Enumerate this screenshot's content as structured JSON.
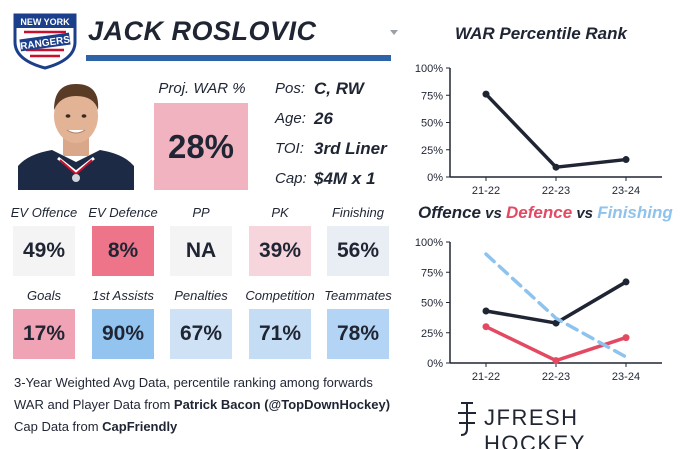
{
  "team": {
    "logo_top_text": "NEW YORK",
    "logo_main_text": "RANGERS"
  },
  "player": {
    "name": "JACK ROSLOVIC"
  },
  "war": {
    "label": "Proj. WAR %",
    "value": "28%",
    "color": "#f0b3bf"
  },
  "info": [
    {
      "key": "Pos:",
      "value": "C, RW"
    },
    {
      "key": "Age:",
      "value": "26"
    },
    {
      "key": "TOI:",
      "value": "3rd Liner"
    },
    {
      "key": "Cap:",
      "value": "$4M x 1"
    }
  ],
  "stats_row1": [
    {
      "label": "EV Offence",
      "value": "49%",
      "color": "#f4f4f5"
    },
    {
      "label": "EV Defence",
      "value": "8%",
      "color": "#ee7589"
    },
    {
      "label": "PP",
      "value": "NA",
      "color": "#f4f4f5"
    },
    {
      "label": "PK",
      "value": "39%",
      "color": "#f7d5dc"
    },
    {
      "label": "Finishing",
      "value": "56%",
      "color": "#e9eef4"
    }
  ],
  "stats_row2": [
    {
      "label": "Goals",
      "value": "17%",
      "color": "#f0a3b4"
    },
    {
      "label": "1st Assists",
      "value": "90%",
      "color": "#92c4ef"
    },
    {
      "label": "Penalties",
      "value": "67%",
      "color": "#cfe1f5"
    },
    {
      "label": "Competition",
      "value": "71%",
      "color": "#c4dcf4"
    },
    {
      "label": "Teammates",
      "value": "78%",
      "color": "#b3d4f4"
    }
  ],
  "footer": {
    "line1": "3-Year Weighted Avg Data, percentile ranking among forwards",
    "line2_prefix": "WAR and Player Data from ",
    "line2_bold": "Patrick Bacon (@TopDownHockey)",
    "line3_prefix": "Cap Data from ",
    "line3_bold": "CapFriendly"
  },
  "brand": {
    "text": "JFRESH HOCKEY"
  },
  "chart_titles": {
    "war_title": "WAR Percentile Rank",
    "ovd_part1": "Offence",
    "ovd_vs1": " vs ",
    "ovd_part2": "Defence",
    "ovd_vs2": " vs ",
    "ovd_part3": "Finishing"
  },
  "chart_data": [
    {
      "type": "line",
      "title": "WAR Percentile Rank",
      "x": [
        "21-22",
        "22-23",
        "23-24"
      ],
      "yticks": [
        "100%",
        "75%",
        "50%",
        "25%",
        "0%"
      ],
      "ylim": [
        0,
        100
      ],
      "series": [
        {
          "values": [
            76,
            9,
            16
          ],
          "color": "#1f2533",
          "dashed": false
        }
      ]
    },
    {
      "type": "line",
      "title": "Offence vs Defence vs Finishing",
      "x": [
        "21-22",
        "22-23",
        "23-24"
      ],
      "yticks": [
        "100%",
        "75%",
        "50%",
        "25%",
        "0%"
      ],
      "ylim": [
        0,
        100
      ],
      "series": [
        {
          "name": "Offence",
          "values": [
            43,
            33,
            67
          ],
          "color": "#1f2533",
          "dashed": false
        },
        {
          "name": "Defence",
          "values": [
            30,
            2,
            21
          ],
          "color": "#e34a62",
          "dashed": false
        },
        {
          "name": "Finishing",
          "values": [
            90,
            37,
            5
          ],
          "color": "#8ec3ee",
          "dashed": true
        }
      ]
    }
  ]
}
